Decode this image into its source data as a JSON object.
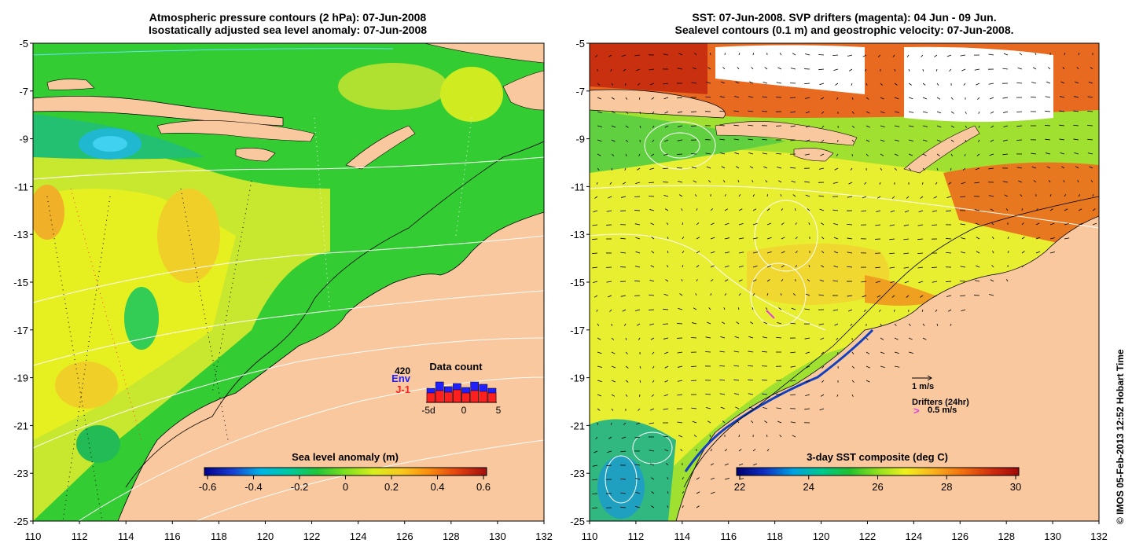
{
  "left_panel": {
    "title_line1": "Atmospheric pressure contours (2 hPa): 07-Jun-2008",
    "title_line2": "Isostatically adjusted sea level anomaly: 07-Jun-2008",
    "y_ticks": [
      "-5",
      "-7",
      "-9",
      "-11",
      "-13",
      "-15",
      "-17",
      "-19",
      "-21",
      "-23",
      "-25"
    ],
    "x_ticks": [
      "110",
      "112",
      "114",
      "116",
      "118",
      "120",
      "122",
      "124",
      "126",
      "128",
      "130",
      "132"
    ],
    "colorbar_title": "Sea level anomaly (m)",
    "colorbar_ticks": [
      "-0.6",
      "-0.4",
      "-0.2",
      "0",
      "0.2",
      "0.4",
      "0.6"
    ],
    "inset": {
      "title": "Data count",
      "max_label": "420",
      "series": [
        {
          "name": "Env",
          "color": "#1f1fff",
          "values": [
            180,
            260,
            200,
            240,
            190,
            260,
            230,
            180
          ]
        },
        {
          "name": "J-1",
          "color": "#ff1f1f",
          "values": [
            120,
            150,
            130,
            160,
            120,
            150,
            140,
            120
          ]
        }
      ],
      "x_ticks": [
        "-5d",
        "0",
        "5"
      ]
    }
  },
  "right_panel": {
    "title_line1": "SST: 07-Jun-2008. SVP drifters (magenta): 04 Jun - 09 Jun.",
    "title_line2": "Sealevel contours (0.1 m) and geostrophic velocity: 07-Jun-2008.",
    "y_ticks": [
      "-5",
      "-7",
      "-9",
      "-11",
      "-13",
      "-15",
      "-17",
      "-19",
      "-21",
      "-23",
      "-25"
    ],
    "x_ticks": [
      "110",
      "112",
      "114",
      "116",
      "118",
      "120",
      "122",
      "124",
      "126",
      "128",
      "130",
      "132"
    ],
    "colorbar_title": "3-day SST composite (deg C)",
    "colorbar_ticks": [
      "22",
      "24",
      "26",
      "28",
      "30"
    ],
    "velocity_legend": "1 m/s",
    "drifters_legend_title": "Drifters (24hr)",
    "drifters_legend_marker": ">",
    "drifters_legend_value": "0.5 m/s"
  },
  "credit": "© IMOS 05-Feb-2013 12:52 Hobart Time",
  "colors": {
    "land": "#f9c89e",
    "sla_colorbar": [
      "#00008b",
      "#1a3fd0",
      "#00b4e6",
      "#00c8a0",
      "#22c43a",
      "#7fe020",
      "#d8ee20",
      "#f8c820",
      "#f88a10",
      "#e04010",
      "#a01010"
    ],
    "sst_colorbar": [
      "#000070",
      "#1030c0",
      "#00a0e0",
      "#00c890",
      "#20c030",
      "#90e020",
      "#f0f020",
      "#f8b020",
      "#f07010",
      "#d03010",
      "#a00808"
    ]
  }
}
